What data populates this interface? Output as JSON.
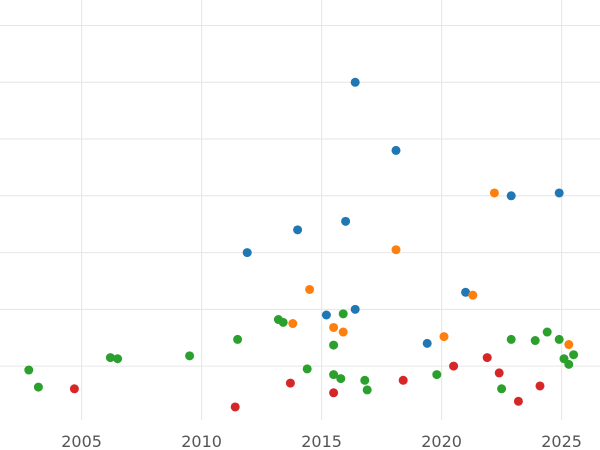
{
  "chart_data": {
    "type": "scatter",
    "title": "",
    "xlabel": "",
    "ylabel": "",
    "xlim": [
      2001.6,
      2026.6
    ],
    "ylim": [
      -0.95,
      6.45
    ],
    "grid": true,
    "x_ticks": [
      {
        "value": 2005,
        "label": "2005"
      },
      {
        "value": 2010,
        "label": "2010"
      },
      {
        "value": 2015,
        "label": "2015"
      },
      {
        "value": 2020,
        "label": "2020"
      },
      {
        "value": 2025,
        "label": "2025"
      }
    ],
    "y_grid": [
      0,
      1,
      2,
      3,
      4,
      5,
      6
    ],
    "series": [
      {
        "color": "#1f77b4",
        "points": [
          {
            "x": 2016.4,
            "y": 5.0
          },
          {
            "x": 2018.1,
            "y": 3.8
          },
          {
            "x": 2022.9,
            "y": 3.0
          },
          {
            "x": 2024.9,
            "y": 3.05
          },
          {
            "x": 2014.0,
            "y": 2.4
          },
          {
            "x": 2016.0,
            "y": 2.55
          },
          {
            "x": 2011.9,
            "y": 2.0
          },
          {
            "x": 2021.0,
            "y": 1.3
          },
          {
            "x": 2015.2,
            "y": 0.9
          },
          {
            "x": 2016.4,
            "y": 1.0
          },
          {
            "x": 2019.4,
            "y": 0.4
          }
        ]
      },
      {
        "color": "#ff7f0e",
        "points": [
          {
            "x": 2022.2,
            "y": 3.05
          },
          {
            "x": 2018.1,
            "y": 2.05
          },
          {
            "x": 2014.5,
            "y": 1.35
          },
          {
            "x": 2021.3,
            "y": 1.25
          },
          {
            "x": 2013.8,
            "y": 0.75
          },
          {
            "x": 2015.5,
            "y": 0.68
          },
          {
            "x": 2015.9,
            "y": 0.6
          },
          {
            "x": 2020.1,
            "y": 0.52
          },
          {
            "x": 2025.3,
            "y": 0.38
          }
        ]
      },
      {
        "color": "#2ca02c",
        "points": [
          {
            "x": 2002.8,
            "y": -0.07
          },
          {
            "x": 2003.2,
            "y": -0.37
          },
          {
            "x": 2006.2,
            "y": 0.15
          },
          {
            "x": 2006.5,
            "y": 0.13
          },
          {
            "x": 2009.5,
            "y": 0.18
          },
          {
            "x": 2011.5,
            "y": 0.47
          },
          {
            "x": 2013.2,
            "y": 0.82
          },
          {
            "x": 2013.4,
            "y": 0.77
          },
          {
            "x": 2015.9,
            "y": 0.92
          },
          {
            "x": 2015.5,
            "y": 0.37
          },
          {
            "x": 2014.4,
            "y": -0.05
          },
          {
            "x": 2015.5,
            "y": -0.15
          },
          {
            "x": 2015.8,
            "y": -0.22
          },
          {
            "x": 2016.8,
            "y": -0.25
          },
          {
            "x": 2016.9,
            "y": -0.42
          },
          {
            "x": 2019.8,
            "y": -0.15
          },
          {
            "x": 2022.9,
            "y": 0.47
          },
          {
            "x": 2022.5,
            "y": -0.4
          },
          {
            "x": 2023.9,
            "y": 0.45
          },
          {
            "x": 2024.4,
            "y": 0.6
          },
          {
            "x": 2024.9,
            "y": 0.47
          },
          {
            "x": 2025.1,
            "y": 0.13
          },
          {
            "x": 2025.3,
            "y": 0.03
          },
          {
            "x": 2025.5,
            "y": 0.2
          }
        ]
      },
      {
        "color": "#d62728",
        "points": [
          {
            "x": 2004.7,
            "y": -0.4
          },
          {
            "x": 2011.4,
            "y": -0.72
          },
          {
            "x": 2013.7,
            "y": -0.3
          },
          {
            "x": 2015.5,
            "y": -0.47
          },
          {
            "x": 2018.4,
            "y": -0.25
          },
          {
            "x": 2020.5,
            "y": 0.0
          },
          {
            "x": 2021.9,
            "y": 0.15
          },
          {
            "x": 2022.4,
            "y": -0.12
          },
          {
            "x": 2023.2,
            "y": -0.62
          },
          {
            "x": 2024.1,
            "y": -0.35
          }
        ]
      }
    ]
  }
}
